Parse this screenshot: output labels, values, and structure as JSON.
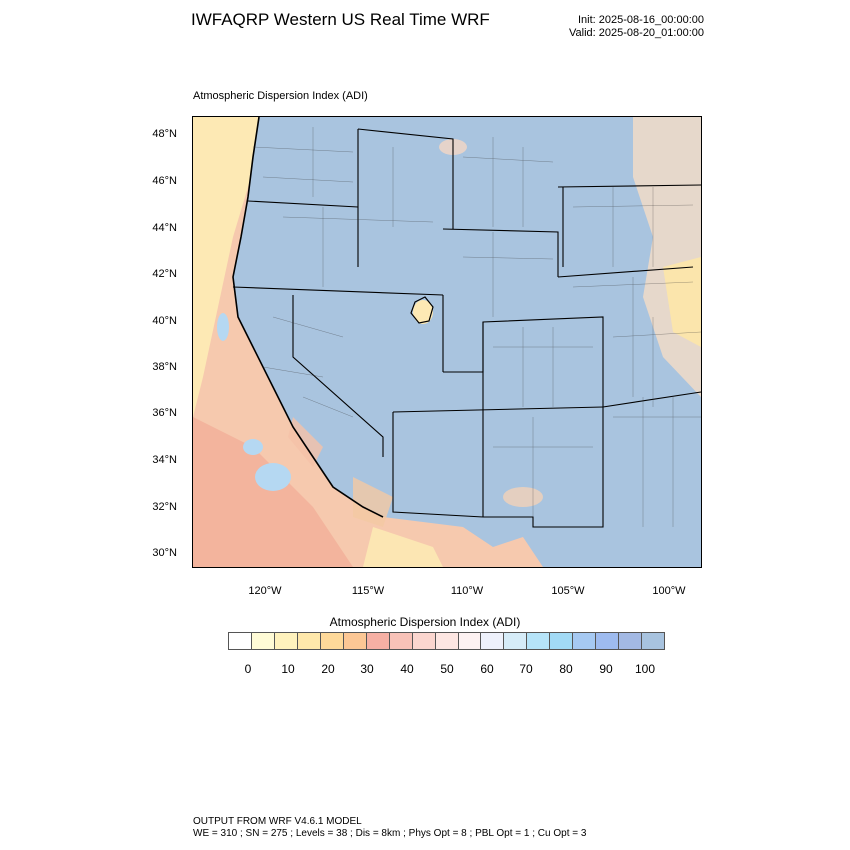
{
  "header": {
    "title": "IWFAQRP Western US Real Time WRF",
    "init": "Init: 2025-08-16_00:00:00",
    "valid": "Valid: 2025-08-20_01:00:00"
  },
  "field_title": "Atmospheric Dispersion Index   (ADI)",
  "map": {
    "lat_labels": [
      "48°N",
      "46°N",
      "44°N",
      "42°N",
      "40°N",
      "38°N",
      "36°N",
      "34°N",
      "32°N",
      "30°N"
    ],
    "lon_labels": [
      "120°W",
      "115°W",
      "110°W",
      "105°W",
      "100°W"
    ],
    "colors": {
      "land_high_adi": "#a7c4e0",
      "ocean": "#f6c8b0",
      "land_low_adi": "#fde9b0",
      "boundary": "#000000"
    }
  },
  "legend": {
    "title": "Atmospheric Dispersion Index  (ADI)",
    "colors": [
      "#ffffff",
      "#fffbd6",
      "#fff2bd",
      "#ffe8ab",
      "#fed99a",
      "#fcc795",
      "#f6b0a4",
      "#f8c2b8",
      "#fbd6cf",
      "#fde6e2",
      "#fdf2f2",
      "#eef1fb",
      "#d6ecf8",
      "#b6e4f9",
      "#a2daf5",
      "#a6c9f2",
      "#9ebbef",
      "#a3b9e4",
      "#a8c3df"
    ],
    "tick_labels": [
      "0",
      "10",
      "20",
      "30",
      "40",
      "50",
      "60",
      "70",
      "80",
      "90",
      "100"
    ]
  },
  "footer": {
    "line1": "OUTPUT FROM WRF V4.6.1 MODEL",
    "line2": "WE = 310 ; SN = 275 ; Levels = 38 ; Dis = 8km ; Phys Opt = 8 ; PBL Opt = 1 ; Cu Opt = 3"
  }
}
